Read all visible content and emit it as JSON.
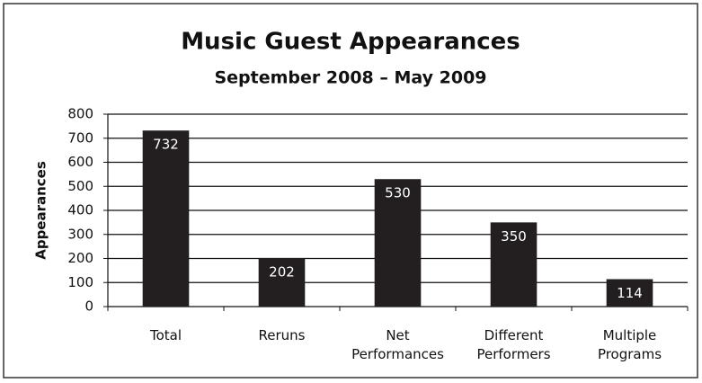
{
  "chart_data": {
    "type": "bar",
    "title": "Music Guest Appearances",
    "subtitle": "September 2008 – May 2009",
    "y_label": "Appearances",
    "categories": [
      "Total",
      "Reruns",
      "Net Performances",
      "Different Performers",
      "Multiple Programs"
    ],
    "values": [
      732,
      202,
      530,
      350,
      114
    ],
    "color": "#231f20",
    "ylim": [
      0,
      800
    ],
    "yticks": [
      0,
      100,
      200,
      300,
      400,
      500,
      600,
      700,
      800
    ],
    "grid": true
  }
}
